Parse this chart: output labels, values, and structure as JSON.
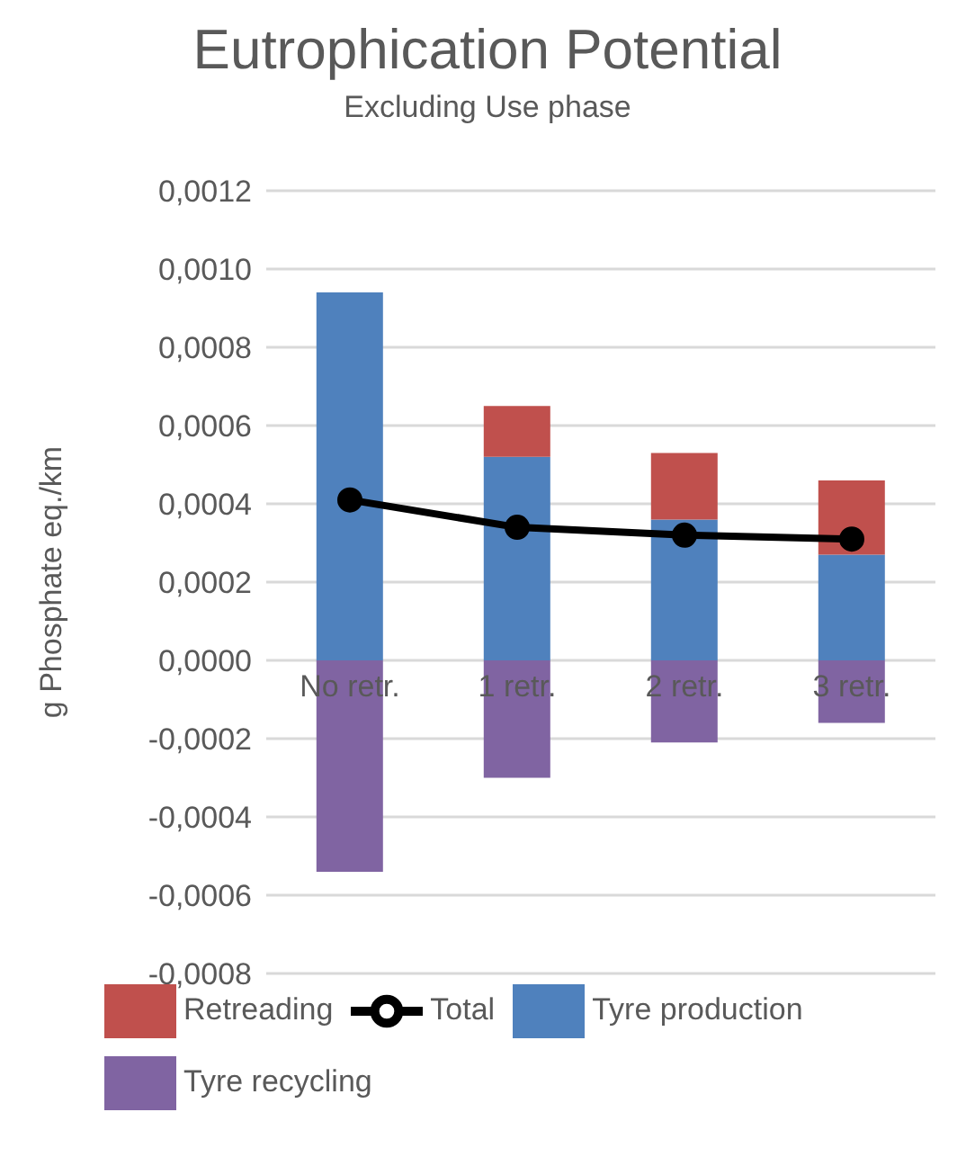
{
  "chart_data": {
    "type": "bar",
    "title": "Eutrophication Potential",
    "subtitle": "Excluding Use phase",
    "ylabel": "g Phosphate eq./km",
    "categories": [
      "No retr.",
      "1 retr.",
      "2 retr.",
      "3 retr."
    ],
    "stacked": true,
    "series": [
      {
        "name": "Tyre production",
        "color": "#4f81bd",
        "values": [
          0.00094,
          0.00052,
          0.00036,
          0.00027
        ]
      },
      {
        "name": "Retreading",
        "color": "#c0504d",
        "values": [
          null,
          0.00013,
          0.00017,
          0.00019
        ]
      },
      {
        "name": "Tyre recycling",
        "color": "#8064a2",
        "values": [
          -0.00054,
          -0.0003,
          -0.00021,
          -0.00016
        ]
      },
      {
        "name": "Total",
        "type": "line",
        "color": "#000000",
        "values": [
          0.00041,
          0.00034,
          0.00032,
          0.00031
        ]
      }
    ],
    "ylim": [
      -0.0008,
      0.0012
    ],
    "yticks": [
      {
        "value": -0.0008,
        "label": "-0,0008"
      },
      {
        "value": -0.0006,
        "label": "-0,0006"
      },
      {
        "value": -0.0004,
        "label": "-0,0004"
      },
      {
        "value": -0.0002,
        "label": "-0,0002"
      },
      {
        "value": 0,
        "label": "0,0000"
      },
      {
        "value": 0.0002,
        "label": "0,0002"
      },
      {
        "value": 0.0004,
        "label": "0,0004"
      },
      {
        "value": 0.0006,
        "label": "0,0006"
      },
      {
        "value": 0.0008,
        "label": "0,0008"
      },
      {
        "value": 0.001,
        "label": "0,0010"
      },
      {
        "value": 0.0012,
        "label": "0,0012"
      }
    ],
    "grid": "y",
    "legend": "bottom",
    "marker": "circle"
  }
}
